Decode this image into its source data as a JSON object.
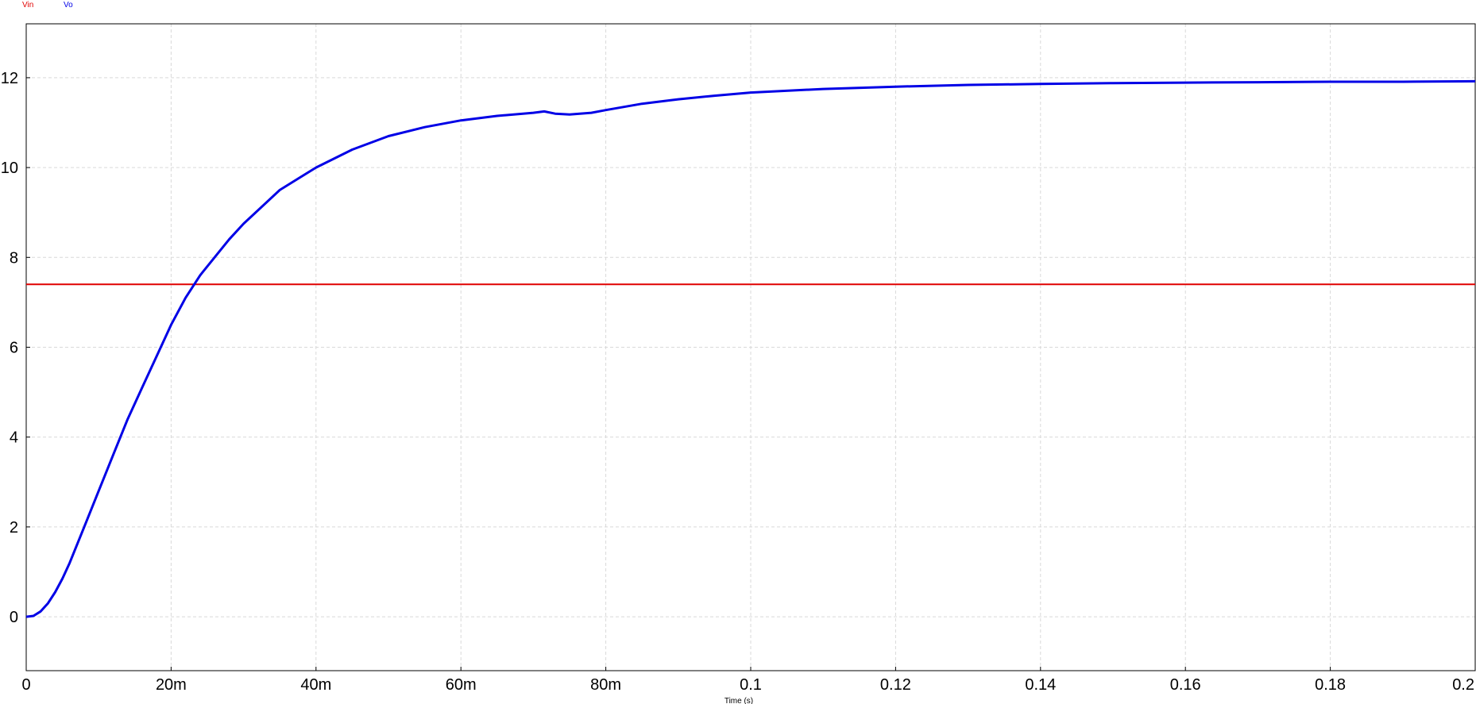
{
  "chart_data": {
    "type": "line",
    "title": "",
    "xlabel": "Time (s)",
    "ylabel": "",
    "xlim": [
      0,
      0.2
    ],
    "ylim": [
      -1.2,
      13.2
    ],
    "grid": true,
    "legend_placement": "top-left",
    "x_ticks": [
      {
        "value": 0,
        "label": "0"
      },
      {
        "value": 0.02,
        "label": "20m"
      },
      {
        "value": 0.04,
        "label": "40m"
      },
      {
        "value": 0.06,
        "label": "60m"
      },
      {
        "value": 0.08,
        "label": "80m"
      },
      {
        "value": 0.1,
        "label": "0.1"
      },
      {
        "value": 0.12,
        "label": "0.12"
      },
      {
        "value": 0.14,
        "label": "0.14"
      },
      {
        "value": 0.16,
        "label": "0.16"
      },
      {
        "value": 0.18,
        "label": "0.18"
      },
      {
        "value": 0.2,
        "label": "0.2"
      }
    ],
    "y_ticks": [
      {
        "value": 0,
        "label": "0"
      },
      {
        "value": 2,
        "label": "2"
      },
      {
        "value": 4,
        "label": "4"
      },
      {
        "value": 6,
        "label": "6"
      },
      {
        "value": 8,
        "label": "8"
      },
      {
        "value": 10,
        "label": "10"
      },
      {
        "value": 12,
        "label": "12"
      }
    ],
    "series": [
      {
        "name": "Vin",
        "color": "#e00000",
        "x": [
          0,
          0.2
        ],
        "y": [
          7.4,
          7.4
        ]
      },
      {
        "name": "Vo",
        "color": "#0000e6",
        "x": [
          0,
          0.001,
          0.002,
          0.003,
          0.004,
          0.005,
          0.006,
          0.008,
          0.01,
          0.012,
          0.014,
          0.016,
          0.018,
          0.02,
          0.022,
          0.024,
          0.026,
          0.028,
          0.03,
          0.035,
          0.04,
          0.045,
          0.05,
          0.055,
          0.06,
          0.065,
          0.07,
          0.0715,
          0.073,
          0.075,
          0.078,
          0.08,
          0.085,
          0.09,
          0.095,
          0.1,
          0.11,
          0.12,
          0.13,
          0.14,
          0.15,
          0.16,
          0.17,
          0.18,
          0.19,
          0.2
        ],
        "y": [
          0,
          0.02,
          0.12,
          0.3,
          0.55,
          0.85,
          1.2,
          2.0,
          2.8,
          3.6,
          4.4,
          5.1,
          5.8,
          6.5,
          7.1,
          7.6,
          8.0,
          8.4,
          8.75,
          9.5,
          10.0,
          10.4,
          10.7,
          10.9,
          11.05,
          11.15,
          11.22,
          11.25,
          11.2,
          11.18,
          11.22,
          11.28,
          11.42,
          11.52,
          11.6,
          11.67,
          11.75,
          11.8,
          11.84,
          11.86,
          11.88,
          11.89,
          11.9,
          11.91,
          11.91,
          11.92
        ]
      }
    ]
  }
}
